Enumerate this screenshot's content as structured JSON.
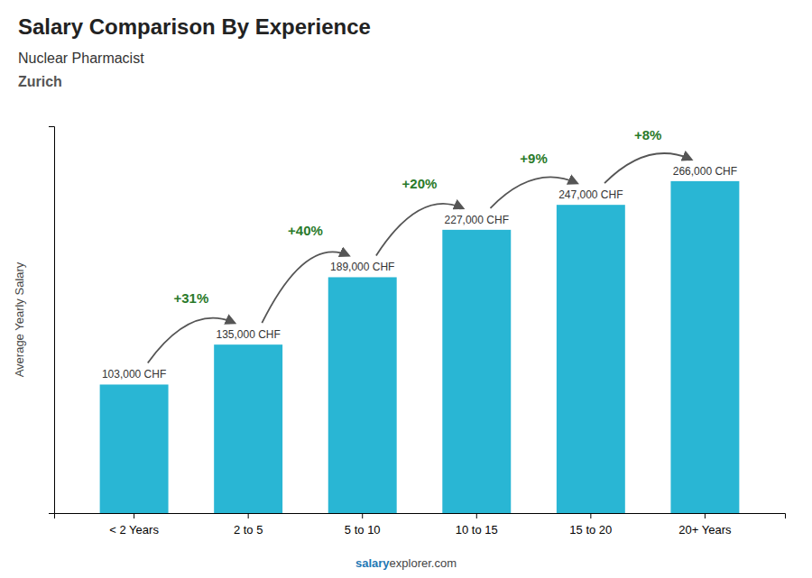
{
  "chart_data": {
    "type": "bar",
    "title": "Salary Comparison By Experience",
    "subtitle": [
      "Nuclear Pharmacist",
      "Zurich"
    ],
    "ylabel": "Average Yearly Salary",
    "categories": [
      "< 2 Years",
      "2 to 5",
      "5 to 10",
      "10 to 15",
      "15 to 20",
      "20+ Years"
    ],
    "values": [
      103000,
      135000,
      189000,
      227000,
      247000,
      266000
    ],
    "value_labels": [
      "103,000 CHF",
      "135,000 CHF",
      "189,000 CHF",
      "227,000 CHF",
      "247,000 CHF",
      "266,000 CHF"
    ],
    "data_labels": true,
    "color": "#29b6d4",
    "ylim": [
      0,
      310000
    ],
    "tick_labels": "x",
    "grid": false,
    "annotations": [
      "+31%",
      "+40%",
      "+20%",
      "+9%",
      "+8%"
    ],
    "footer": [
      "salary",
      "explorer.com"
    ]
  }
}
